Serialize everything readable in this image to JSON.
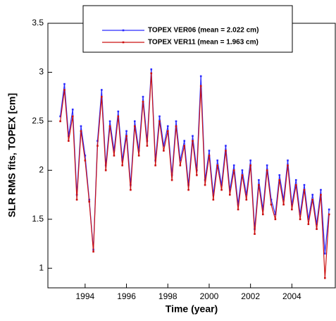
{
  "chart_data": {
    "type": "line",
    "x_label": "Time (year)",
    "y_label": "SLR RMS fits, TOPEX [cm]",
    "x": [
      1992.8,
      1993.0,
      1993.2,
      1993.4,
      1993.6,
      1993.8,
      1994.0,
      1994.2,
      1994.4,
      1994.6,
      1994.8,
      1995.0,
      1995.2,
      1995.4,
      1995.6,
      1995.8,
      1996.0,
      1996.2,
      1996.4,
      1996.6,
      1996.8,
      1997.0,
      1997.2,
      1997.4,
      1997.6,
      1997.8,
      1998.0,
      1998.2,
      1998.4,
      1998.6,
      1998.8,
      1999.0,
      1999.2,
      1999.4,
      1999.6,
      1999.8,
      2000.0,
      2000.2,
      2000.4,
      2000.6,
      2000.8,
      2001.0,
      2001.2,
      2001.4,
      2001.6,
      2001.8,
      2002.0,
      2002.2,
      2002.4,
      2002.6,
      2002.8,
      2003.0,
      2003.2,
      2003.4,
      2003.6,
      2003.8,
      2004.0,
      2004.2,
      2004.4,
      2004.6,
      2004.8,
      2005.0,
      2005.2,
      2005.4,
      2005.6,
      2005.8
    ],
    "series": [
      {
        "name": "TOPEX VER06 (mean = 2.022 cm)",
        "color": "#2b2bff",
        "values": [
          2.55,
          2.88,
          2.35,
          2.62,
          1.75,
          2.45,
          2.15,
          1.7,
          1.19,
          2.3,
          2.82,
          2.05,
          2.5,
          2.2,
          2.6,
          2.1,
          2.4,
          1.85,
          2.5,
          2.2,
          2.75,
          2.3,
          3.03,
          2.1,
          2.55,
          2.25,
          2.45,
          1.95,
          2.5,
          2.1,
          2.3,
          1.85,
          2.35,
          2.0,
          2.96,
          1.9,
          2.2,
          1.75,
          2.1,
          1.85,
          2.25,
          1.8,
          2.05,
          1.65,
          2.0,
          1.75,
          2.1,
          1.4,
          1.9,
          1.6,
          2.05,
          1.7,
          1.55,
          1.95,
          1.7,
          2.1,
          1.65,
          1.9,
          1.55,
          1.85,
          1.5,
          1.75,
          1.45,
          1.8,
          1.15,
          1.6
        ]
      },
      {
        "name": "TOPEX VER11 (mean = 1.963 cm)",
        "color": "#cc1111",
        "values": [
          2.5,
          2.82,
          2.3,
          2.55,
          1.7,
          2.4,
          2.1,
          1.68,
          1.17,
          2.25,
          2.75,
          2.0,
          2.45,
          2.15,
          2.55,
          2.05,
          2.35,
          1.8,
          2.45,
          2.15,
          2.7,
          2.25,
          2.99,
          2.05,
          2.5,
          2.2,
          2.4,
          1.9,
          2.45,
          2.05,
          2.25,
          1.8,
          2.3,
          1.95,
          2.86,
          1.85,
          2.15,
          1.7,
          2.05,
          1.8,
          2.2,
          1.75,
          2.0,
          1.6,
          1.95,
          1.7,
          2.05,
          1.35,
          1.85,
          1.55,
          2.0,
          1.65,
          1.5,
          1.9,
          1.65,
          2.05,
          1.6,
          1.85,
          1.5,
          1.8,
          1.45,
          1.7,
          1.4,
          1.75,
          0.9,
          1.55
        ]
      }
    ],
    "xlim": [
      1992.2,
      2006.1
    ],
    "xticks": [
      1994,
      1996,
      1998,
      2000,
      2002,
      2004
    ],
    "ylim": [
      0.8,
      3.5
    ],
    "yticks": [
      1,
      1.5,
      2,
      2.5,
      3,
      3.5
    ]
  }
}
